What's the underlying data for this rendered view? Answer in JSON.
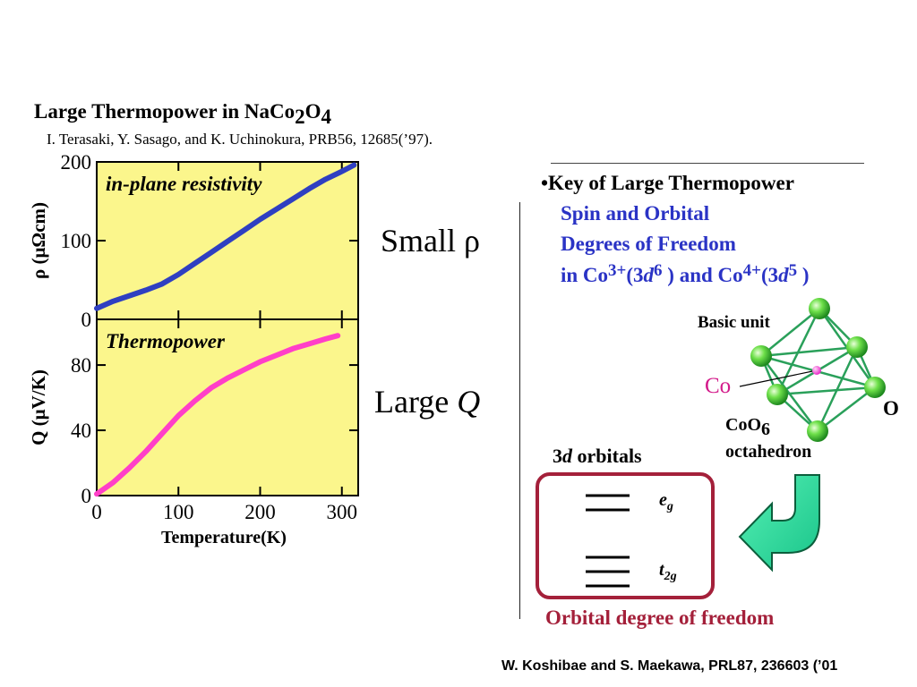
{
  "title": {
    "prefix": "Large Thermopower in NaCo",
    "sub1": "2",
    "mid": "O",
    "sub2": "4"
  },
  "reference": "I. Terasaki, Y. Sasago, and K. Uchinokura,  PRB56, 12685(’97).",
  "chart_data": [
    {
      "type": "line",
      "title": "in-plane resistivity",
      "ylabel": "ρ (μΩcm)",
      "xlabel": "",
      "xlim": [
        0,
        320
      ],
      "ylim": [
        0,
        200
      ],
      "yticks": [
        "0",
        "100",
        "200"
      ],
      "series": [
        {
          "x": [
            0,
            20,
            40,
            60,
            80,
            100,
            120,
            140,
            160,
            180,
            200,
            220,
            240,
            260,
            280,
            300,
            315
          ],
          "y": [
            14,
            23,
            30,
            37,
            45,
            57,
            71,
            85,
            99,
            113,
            127,
            140,
            153,
            166,
            178,
            188,
            196
          ],
          "color": "#2f3fc1"
        }
      ]
    },
    {
      "type": "line",
      "title": "Thermopower",
      "ylabel": "Q (μV/K)",
      "xlabel": "Temperature(K)",
      "xlim": [
        0,
        320
      ],
      "ylim": [
        0,
        108
      ],
      "yticks": [
        "0",
        "40",
        "80"
      ],
      "xticks": [
        "0",
        "100",
        "200",
        "300"
      ],
      "series": [
        {
          "x": [
            0,
            20,
            40,
            60,
            80,
            100,
            120,
            140,
            160,
            180,
            200,
            220,
            240,
            260,
            280,
            295
          ],
          "y": [
            1,
            8,
            17,
            27,
            38,
            49,
            58,
            66,
            72,
            77,
            82,
            86,
            90,
            93,
            96,
            98
          ],
          "color": "#ff3fc8"
        }
      ]
    }
  ],
  "left_labels": {
    "small_rho_text": "Small ",
    "small_rho_symbol": "ρ",
    "large_q_text": "Large ",
    "large_q_symbol": "Q"
  },
  "key": {
    "heading": "•Key of Large Thermopower",
    "line1": "Spin and Orbital",
    "line2": "Degrees of Freedom",
    "line3_a": "in Co",
    "line3_sup1": "3+",
    "line3_b": "(3",
    "line3_d1": "d",
    "line3_sup2": "6",
    "line3_c": " ) and Co",
    "line3_sup3": "4+",
    "line3_d": "(3",
    "line3_d2": "d",
    "line3_sup4": "5",
    "line3_e": " )"
  },
  "octahedron": {
    "basic_unit": "Basic unit",
    "co_label": "Co",
    "o_label": "O",
    "formula_a": "CoO",
    "formula_sub": "6",
    "formula_line2": "octahedron"
  },
  "orbitals": {
    "heading_a": "3",
    "heading_d": "d",
    "heading_b": " orbitals",
    "eg_main": "e",
    "eg_sub": "g",
    "t2g_main": "t",
    "t2g_sub": "2g",
    "footer": "Orbital degree of freedom"
  },
  "reference2": "W. Koshibae and S. Maekawa,  PRL87, 236603 (’01"
}
